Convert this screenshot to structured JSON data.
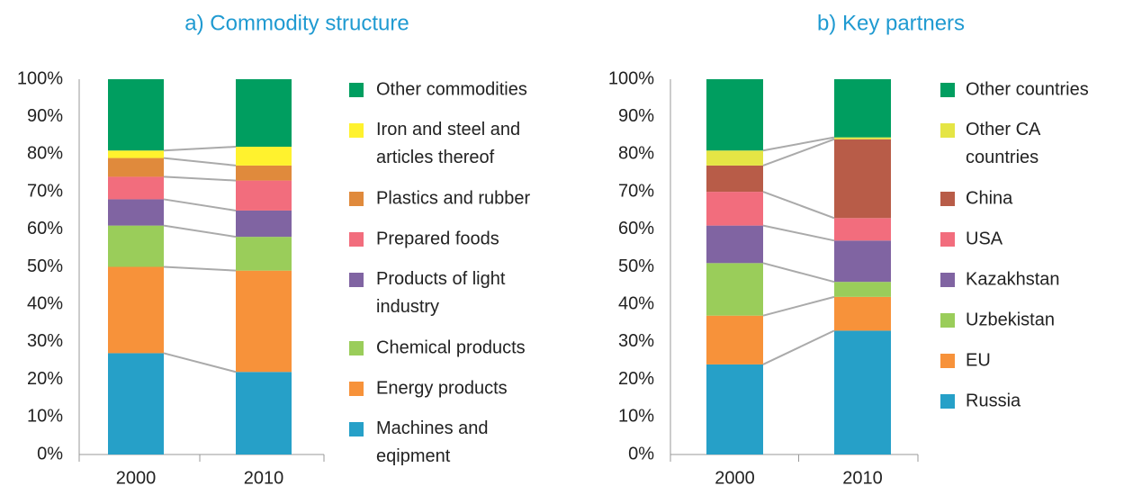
{
  "chart_data": [
    {
      "type": "stacked_bar",
      "title": "a) Commodity structure",
      "categories": [
        "2000",
        "2010"
      ],
      "ylim": [
        0,
        100
      ],
      "yticks": [
        {
          "value": 0,
          "label": "0%"
        },
        {
          "value": 10,
          "label": "10%"
        },
        {
          "value": 20,
          "label": "20%"
        },
        {
          "value": 30,
          "label": "30%"
        },
        {
          "value": 40,
          "label": "40%"
        },
        {
          "value": 50,
          "label": "50%"
        },
        {
          "value": 60,
          "label": "60%"
        },
        {
          "value": 70,
          "label": "70%"
        },
        {
          "value": 80,
          "label": "80%"
        },
        {
          "value": 90,
          "label": "90%"
        },
        {
          "value": 100,
          "label": "100%"
        }
      ],
      "series": [
        {
          "name": "Machines and\neqipment",
          "color": "#26a0c8",
          "values": [
            27,
            22
          ]
        },
        {
          "name": "Energy products",
          "color": "#f7923a",
          "values": [
            23,
            27
          ]
        },
        {
          "name": "Chemical products",
          "color": "#9acd5a",
          "values": [
            11,
            9
          ]
        },
        {
          "name": "Products of light\nindustry",
          "color": "#8064a2",
          "values": [
            7,
            7
          ]
        },
        {
          "name": "Prepared foods",
          "color": "#f26d7d",
          "values": [
            6,
            8
          ]
        },
        {
          "name": "Plastics and rubber",
          "color": "#e08a3c",
          "values": [
            5,
            4
          ]
        },
        {
          "name": "Iron and steel and\narticles thereof",
          "color": "#fff22e",
          "values": [
            2,
            5
          ]
        },
        {
          "name": "Other commodities",
          "color": "#009e60",
          "values": [
            19,
            18
          ]
        }
      ]
    },
    {
      "type": "stacked_bar",
      "title": "b) Key partners",
      "categories": [
        "2000",
        "2010"
      ],
      "ylim": [
        0,
        100
      ],
      "yticks": [
        {
          "value": 0,
          "label": "0%"
        },
        {
          "value": 10,
          "label": "10%"
        },
        {
          "value": 20,
          "label": "20%"
        },
        {
          "value": 30,
          "label": "30%"
        },
        {
          "value": 40,
          "label": "40%"
        },
        {
          "value": 50,
          "label": "50%"
        },
        {
          "value": 60,
          "label": "60%"
        },
        {
          "value": 70,
          "label": "70%"
        },
        {
          "value": 80,
          "label": "80%"
        },
        {
          "value": 90,
          "label": "90%"
        },
        {
          "value": 100,
          "label": "100%"
        }
      ],
      "series": [
        {
          "name": "Russia",
          "color": "#26a0c8",
          "values": [
            24,
            33
          ]
        },
        {
          "name": "EU",
          "color": "#f7923a",
          "values": [
            13,
            9
          ]
        },
        {
          "name": "Uzbekistan",
          "color": "#9acd5a",
          "values": [
            14,
            4
          ]
        },
        {
          "name": "Kazakhstan",
          "color": "#8064a2",
          "values": [
            10,
            11
          ]
        },
        {
          "name": "USA",
          "color": "#f26d7d",
          "values": [
            9,
            6
          ]
        },
        {
          "name": "China",
          "color": "#b85c48",
          "values": [
            7,
            21
          ]
        },
        {
          "name": "Other CA\ncountries",
          "color": "#e5e545",
          "values": [
            4,
            0.5
          ]
        },
        {
          "name": "Other countries",
          "color": "#009e60",
          "values": [
            19,
            15.5
          ]
        }
      ]
    }
  ]
}
